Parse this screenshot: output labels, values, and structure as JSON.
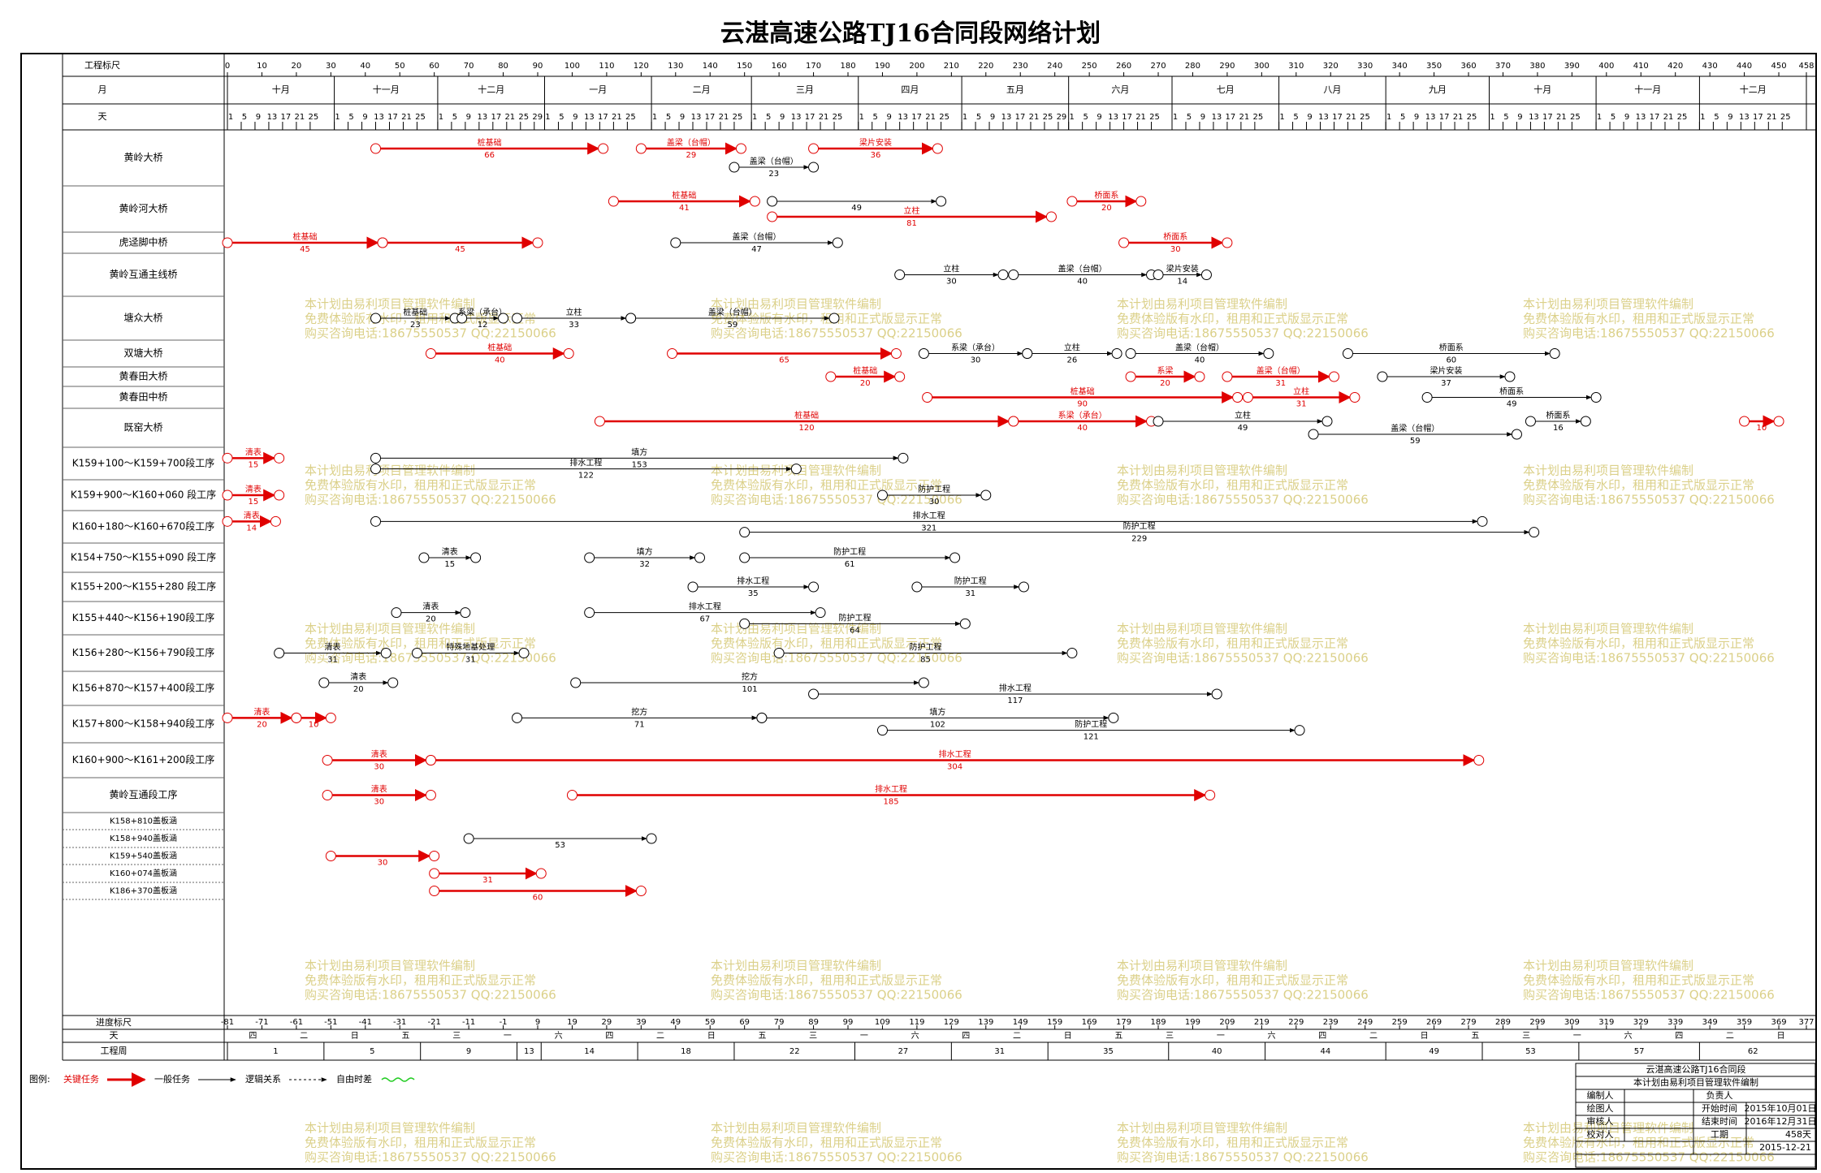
{
  "title": "云湛高速公路TJ16合同段网络计划",
  "header": {
    "scale_label": "工程标尺",
    "month_label": "月",
    "day_label": "天"
  },
  "xlim": [
    0,
    458
  ],
  "scale_ticks": [
    0,
    10,
    20,
    30,
    40,
    50,
    60,
    70,
    80,
    90,
    100,
    110,
    120,
    130,
    140,
    150,
    160,
    170,
    180,
    190,
    200,
    210,
    220,
    230,
    240,
    250,
    260,
    270,
    280,
    290,
    300,
    310,
    320,
    330,
    340,
    350,
    360,
    370,
    380,
    390,
    400,
    410,
    420,
    430,
    440,
    450,
    458
  ],
  "months": [
    {
      "name": "十月",
      "days": [
        1,
        5,
        9,
        13,
        17,
        21,
        25
      ]
    },
    {
      "name": "十一月",
      "days": [
        1,
        5,
        9,
        13,
        17,
        21,
        25
      ]
    },
    {
      "name": "十二月",
      "days": [
        1,
        5,
        9,
        13,
        17,
        21,
        25,
        29
      ]
    },
    {
      "name": "一月",
      "days": [
        1,
        5,
        9,
        13,
        17,
        21,
        25
      ]
    },
    {
      "name": "二月",
      "days": [
        1,
        5,
        9,
        13,
        17,
        21,
        25
      ]
    },
    {
      "name": "三月",
      "days": [
        1,
        5,
        9,
        13,
        17,
        21,
        25
      ]
    },
    {
      "name": "四月",
      "days": [
        1,
        5,
        9,
        13,
        17,
        21,
        25
      ]
    },
    {
      "name": "五月",
      "days": [
        1,
        5,
        9,
        13,
        17,
        21,
        25,
        29
      ]
    },
    {
      "name": "六月",
      "days": [
        1,
        5,
        9,
        13,
        17,
        21,
        25
      ]
    },
    {
      "name": "七月",
      "days": [
        1,
        5,
        9,
        13,
        17,
        21,
        25
      ]
    },
    {
      "name": "八月",
      "days": [
        1,
        5,
        9,
        13,
        17,
        21,
        25
      ]
    },
    {
      "name": "九月",
      "days": [
        1,
        5,
        9,
        13,
        17,
        21,
        25
      ]
    },
    {
      "name": "十月",
      "days": [
        1,
        5,
        9,
        13,
        17,
        21,
        25
      ]
    },
    {
      "name": "十一月",
      "days": [
        1,
        5,
        9,
        13,
        17,
        21,
        25
      ]
    },
    {
      "name": "十二月",
      "days": [
        1,
        5,
        9,
        13,
        17,
        21,
        25
      ]
    }
  ],
  "rows": [
    "黄岭大桥",
    "黄岭河大桥",
    "虎迳脚中桥",
    "黄岭互通主线桥",
    "塘众大桥",
    "双塘大桥",
    "黄春田大桥",
    "黄春田中桥",
    "既窑大桥",
    "K159+100～K159+700段工序",
    "K159+900～K160+060 段工序",
    "K160+180～K160+670段工序",
    "K154+750～K155+090 段工序",
    "K155+200～K155+280 段工序",
    "K155+440～K156+190段工序",
    "K156+280～K156+790段工序",
    "K156+870～K157+400段工序",
    "K157+800～K158+940段工序",
    "K160+900～K161+200段工序",
    "黄岭互通段工序",
    "K158+810盖板涵",
    "K158+940盖板涵",
    "K159+540盖板涵",
    "K160+074盖板涵",
    "K186+370盖板涵"
  ],
  "tasks": [
    {
      "row": 0,
      "start": 43,
      "duration": 66,
      "name": "桩基础",
      "critical": true
    },
    {
      "row": 0,
      "start": 147,
      "duration": 23,
      "name": "盖梁（台帽）",
      "critical": false
    },
    {
      "row": 0,
      "start": 120,
      "duration": 29,
      "name": "盖梁（台帽）",
      "critical": true
    },
    {
      "row": 0,
      "start": 170,
      "duration": 36,
      "name": "梁片安装",
      "critical": true
    },
    {
      "row": 1,
      "start": 112,
      "duration": 41,
      "name": "桩基础",
      "critical": true
    },
    {
      "row": 1,
      "start": 158,
      "duration": 49,
      "critical": false
    },
    {
      "row": 1,
      "start": 158,
      "duration": 81,
      "name": "立柱",
      "critical": true
    },
    {
      "row": 1,
      "start": 245,
      "duration": 20,
      "name": "桥面系",
      "critical": true
    },
    {
      "row": 2,
      "start": 0,
      "duration": 45,
      "name": "桩基础",
      "critical": true
    },
    {
      "row": 2,
      "start": 45,
      "duration": 45,
      "critical": true
    },
    {
      "row": 2,
      "start": 130,
      "duration": 47,
      "name": "盖梁（台帽）",
      "critical": false
    },
    {
      "row": 2,
      "start": 260,
      "duration": 30,
      "name": "桥面系",
      "critical": true
    },
    {
      "row": 3,
      "start": 195,
      "duration": 30,
      "name": "立柱",
      "critical": false
    },
    {
      "row": 3,
      "start": 228,
      "duration": 40,
      "name": "盖梁（台帽）",
      "critical": false
    },
    {
      "row": 3,
      "start": 270,
      "duration": 14,
      "name": "梁片安装",
      "critical": false
    },
    {
      "row": 4,
      "start": 43,
      "duration": 23,
      "name": "桩基础",
      "critical": false
    },
    {
      "row": 4,
      "start": 68,
      "duration": 12,
      "name": "系梁（承台）",
      "critical": false
    },
    {
      "row": 4,
      "start": 84,
      "duration": 33,
      "name": "立柱",
      "critical": false
    },
    {
      "row": 4,
      "start": 117,
      "duration": 59,
      "name": "盖梁（台帽）",
      "critical": false
    },
    {
      "row": 5,
      "start": 59,
      "duration": 40,
      "name": "桩基础",
      "critical": true
    },
    {
      "row": 5,
      "start": 129,
      "duration": 65,
      "critical": true
    },
    {
      "row": 5,
      "start": 202,
      "duration": 30,
      "name": "系梁（承台）",
      "critical": false
    },
    {
      "row": 5,
      "start": 232,
      "duration": 26,
      "name": "立柱",
      "critical": false
    },
    {
      "row": 5,
      "start": 262,
      "duration": 40,
      "name": "盖梁（台帽）",
      "critical": false
    },
    {
      "row": 5,
      "start": 325,
      "duration": 60,
      "name": "桥面系",
      "critical": false
    },
    {
      "row": 6,
      "start": 175,
      "duration": 20,
      "name": "桩基础",
      "critical": true
    },
    {
      "row": 6,
      "start": 262,
      "duration": 20,
      "name": "系梁",
      "critical": true
    },
    {
      "row": 6,
      "start": 290,
      "duration": 31,
      "name": "盖梁（台帽）",
      "critical": true
    },
    {
      "row": 6,
      "start": 335,
      "duration": 37,
      "name": "梁片安装",
      "critical": false
    },
    {
      "row": 7,
      "start": 203,
      "duration": 90,
      "name": "桩基础",
      "critical": true
    },
    {
      "row": 7,
      "start": 296,
      "duration": 31,
      "name": "立柱",
      "critical": true
    },
    {
      "row": 7,
      "start": 348,
      "duration": 49,
      "name": "桥面系",
      "critical": false
    },
    {
      "row": 8,
      "start": 108,
      "duration": 120,
      "name": "桩基础",
      "critical": true
    },
    {
      "row": 8,
      "start": 228,
      "duration": 40,
      "name": "系梁（承台）",
      "critical": true
    },
    {
      "row": 8,
      "start": 270,
      "duration": 49,
      "name": "立柱",
      "critical": false
    },
    {
      "row": 8,
      "start": 315,
      "duration": 59,
      "name": "盖梁（台帽）",
      "critical": false
    },
    {
      "row": 8,
      "start": 378,
      "duration": 16,
      "name": "桥面系",
      "critical": false
    },
    {
      "row": 8,
      "start": 440,
      "duration": 10,
      "critical": true
    },
    {
      "row": 9,
      "start": 0,
      "duration": 15,
      "name": "清表",
      "critical": true
    },
    {
      "row": 9,
      "start": 43,
      "duration": 153,
      "name": "填方",
      "critical": false
    },
    {
      "row": 9,
      "start": 43,
      "duration": 122,
      "name": "排水工程",
      "critical": false
    },
    {
      "row": 10,
      "start": 0,
      "duration": 15,
      "name": "清表",
      "critical": true
    },
    {
      "row": 10,
      "start": 190,
      "duration": 30,
      "name": "防护工程",
      "critical": false
    },
    {
      "row": 11,
      "start": 0,
      "duration": 14,
      "name": "清表",
      "critical": true
    },
    {
      "row": 11,
      "start": 43,
      "duration": 321,
      "name": "排水工程",
      "critical": false
    },
    {
      "row": 11,
      "start": 150,
      "duration": 229,
      "name": "防护工程",
      "critical": false
    },
    {
      "row": 12,
      "start": 57,
      "duration": 15,
      "name": "清表",
      "critical": false
    },
    {
      "row": 12,
      "start": 105,
      "duration": 32,
      "name": "填方",
      "critical": false
    },
    {
      "row": 12,
      "start": 150,
      "duration": 61,
      "name": "防护工程",
      "critical": false
    },
    {
      "row": 13,
      "start": 135,
      "duration": 35,
      "name": "排水工程",
      "critical": false
    },
    {
      "row": 13,
      "start": 200,
      "duration": 31,
      "name": "防护工程",
      "critical": false
    },
    {
      "row": 14,
      "start": 49,
      "duration": 20,
      "name": "清表",
      "critical": false
    },
    {
      "row": 14,
      "start": 105,
      "duration": 67,
      "name": "排水工程",
      "critical": false
    },
    {
      "row": 14,
      "start": 150,
      "duration": 64,
      "name": "防护工程",
      "critical": false
    },
    {
      "row": 15,
      "start": 15,
      "duration": 31,
      "name": "清表",
      "critical": false
    },
    {
      "row": 15,
      "start": 55,
      "duration": 31,
      "name": "特殊地基处理",
      "critical": false
    },
    {
      "row": 15,
      "start": 160,
      "duration": 85,
      "name": "防护工程",
      "critical": false
    },
    {
      "row": 16,
      "start": 28,
      "duration": 20,
      "name": "清表",
      "critical": false
    },
    {
      "row": 16,
      "start": 101,
      "duration": 101,
      "name": "挖方",
      "critical": false
    },
    {
      "row": 16,
      "start": 170,
      "duration": 117,
      "name": "排水工程",
      "critical": false
    },
    {
      "row": 17,
      "start": 0,
      "duration": 20,
      "name": "清表",
      "critical": true
    },
    {
      "row": 17,
      "start": 20,
      "duration": 10,
      "critical": true
    },
    {
      "row": 17,
      "start": 84,
      "duration": 71,
      "name": "挖方",
      "critical": false
    },
    {
      "row": 17,
      "start": 155,
      "duration": 102,
      "name": "填方",
      "critical": false
    },
    {
      "row": 17,
      "start": 190,
      "duration": 121,
      "name": "防护工程",
      "critical": false
    },
    {
      "row": 18,
      "start": 29,
      "duration": 30,
      "name": "清表",
      "critical": true
    },
    {
      "row": 18,
      "start": 59,
      "duration": 304,
      "name": "排水工程",
      "critical": true
    },
    {
      "row": 19,
      "start": 29,
      "duration": 30,
      "name": "清表",
      "critical": true
    },
    {
      "row": 19,
      "start": 100,
      "duration": 185,
      "name": "排水工程",
      "critical": true
    },
    {
      "row": 21,
      "start": 70,
      "duration": 53,
      "critical": false
    },
    {
      "row": 22,
      "start": 30,
      "duration": 30,
      "critical": true
    },
    {
      "row": 23,
      "start": 60,
      "duration": 31,
      "critical": true
    },
    {
      "row": 24,
      "start": 60,
      "duration": 60,
      "critical": true
    }
  ],
  "footer": {
    "progress_label": "进度标尺",
    "progress_ticks": [
      -81,
      -71,
      -61,
      -51,
      -41,
      -31,
      -21,
      -11,
      -1,
      9,
      19,
      29,
      39,
      49,
      59,
      69,
      79,
      89,
      99,
      109,
      119,
      129,
      139,
      149,
      159,
      169,
      179,
      189,
      199,
      209,
      219,
      229,
      239,
      249,
      259,
      269,
      279,
      289,
      299,
      309,
      319,
      329,
      339,
      349,
      359,
      369,
      377
    ],
    "weekday_label": "天",
    "weekdays": [
      "四",
      "二",
      "日",
      "五",
      "三",
      "一",
      "六",
      "四",
      "二",
      "日",
      "五",
      "三",
      "一",
      "六",
      "四",
      "二",
      "日",
      "五",
      "三",
      "一",
      "六",
      "四",
      "二",
      "日",
      "五",
      "三",
      "一",
      "六",
      "四",
      "二",
      "日"
    ],
    "week_label": "工程周",
    "weeks": [
      1,
      5,
      9,
      13,
      14,
      18,
      22,
      27,
      31,
      35,
      40,
      44,
      49,
      53,
      57,
      62
    ]
  },
  "legend": {
    "title": "图例:",
    "items": [
      "关键任务",
      "一般任务",
      "逻辑关系",
      "自由时差"
    ]
  },
  "info": {
    "project": "云湛高速公路TJ16合同段",
    "software": "本计划由易利项目管理软件编制",
    "compiler": "编制人",
    "owner": "负责人",
    "drawer": "绘图人",
    "start_label": "开始时间",
    "start": "2015年10月01日",
    "reviewer": "审核人",
    "end_label": "结束时间",
    "end": "2016年12月31日",
    "checker": "校对人",
    "duration_label": "工期",
    "duration": "458天",
    "date": "2015-12-21"
  },
  "watermark": [
    "本计划由易利项目管理软件编制",
    "免费体验版有水印，租用和正式版显示正常",
    "购买咨询电话:18675550537 QQ:22150066"
  ]
}
